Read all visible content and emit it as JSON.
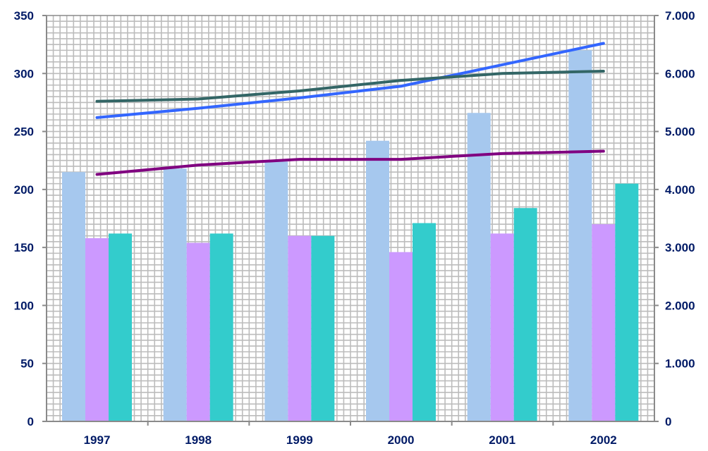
{
  "chart_data": {
    "type": "bar",
    "categories": [
      "1997",
      "1998",
      "1999",
      "2000",
      "2001",
      "2002"
    ],
    "title": "",
    "xlabel": "",
    "ylabel": "",
    "ylim": [
      0,
      350
    ],
    "y2lim": [
      0,
      7000
    ],
    "y_ticks": [
      "0",
      "50",
      "100",
      "150",
      "200",
      "250",
      "300",
      "350"
    ],
    "y2_ticks": [
      "0",
      "1.000",
      "2.000",
      "3.000",
      "4.000",
      "5.000",
      "6.000",
      "7.000"
    ],
    "grid": true,
    "legend": "none",
    "bar_series": [
      {
        "color": "#a6c8ee",
        "values": [
          215,
          218,
          224,
          242,
          266,
          320
        ]
      },
      {
        "color": "#cc99ff",
        "values": [
          158,
          154,
          160,
          146,
          162,
          170
        ]
      },
      {
        "color": "#33cccc",
        "values": [
          162,
          162,
          160,
          171,
          184,
          205
        ]
      }
    ],
    "line_series": [
      {
        "color": "#3366ff",
        "axis": "right",
        "values": [
          5240,
          5400,
          5580,
          5780,
          6150,
          6520
        ]
      },
      {
        "color": "#336666",
        "axis": "right",
        "values": [
          5520,
          5560,
          5700,
          5880,
          6000,
          6040
        ]
      },
      {
        "color": "#800080",
        "axis": "right",
        "values": [
          4260,
          4420,
          4520,
          4520,
          4620,
          4660
        ]
      }
    ]
  }
}
